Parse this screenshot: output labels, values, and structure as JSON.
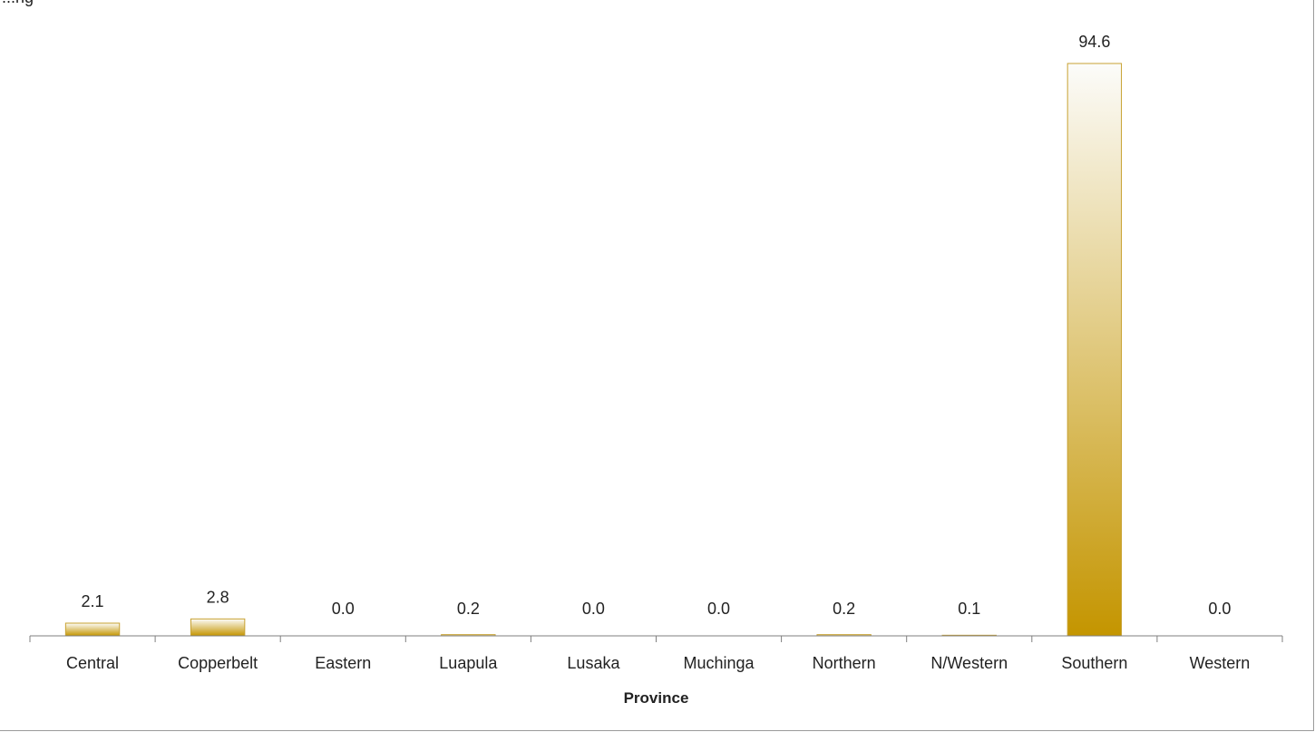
{
  "chart_data": {
    "type": "bar",
    "title": "",
    "xlabel": "Province",
    "ylabel": "",
    "ylim": [
      0,
      100
    ],
    "grid": false,
    "legend": "none",
    "categories": [
      "Central",
      "Copperbelt",
      "Eastern",
      "Luapula",
      "Lusaka",
      "Muchinga",
      "Northern",
      "N/Western",
      "Southern",
      "Western"
    ],
    "values": [
      2.1,
      2.8,
      0.0,
      0.2,
      0.0,
      0.0,
      0.2,
      0.1,
      94.6,
      0.0
    ],
    "value_labels": [
      "2.1",
      "2.8",
      "0.0",
      "0.2",
      "0.0",
      "0.0",
      "0.2",
      "0.1",
      "94.6",
      "0.0"
    ],
    "colors": {
      "bar_base": "#c49500",
      "bar_top": "#fcfcfa",
      "bar_stroke": "#c8a232",
      "axis": "#7f7f7f"
    }
  },
  "fragment": {
    "text": "...ng"
  }
}
